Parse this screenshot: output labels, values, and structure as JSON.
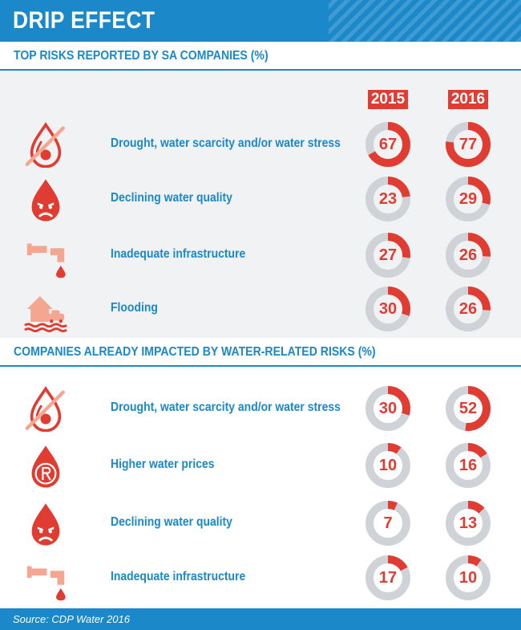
{
  "title": "DRIP EFFECT",
  "source": "Source: CDP Water 2016",
  "years": [
    "2015",
    "2016"
  ],
  "colors": {
    "accent": "#e03c31",
    "brand": "#1a88c9",
    "track": "#cfd3d8",
    "band": "#f1f2f4",
    "icon_light": "#f4a690"
  },
  "chart_data": [
    {
      "type": "donut",
      "title": "TOP RISKS REPORTED BY SA COMPANIES (%)",
      "categories": [
        "Drought, water scarcity and/or water stress",
        "Declining water quality",
        "Inadequate infrastructure",
        "Flooding"
      ],
      "icons": [
        "no-water-drop-icon",
        "angry-drop-icon",
        "pipe-leak-icon",
        "flooded-house-icon"
      ],
      "series": [
        {
          "name": "2015",
          "values": [
            67,
            23,
            27,
            30
          ]
        },
        {
          "name": "2016",
          "values": [
            77,
            29,
            26,
            26
          ]
        }
      ]
    },
    {
      "type": "donut",
      "title": "COMPANIES ALREADY IMPACTED BY WATER-RELATED RISKS (%)",
      "categories": [
        "Drought, water scarcity and/or water stress",
        "Higher water prices",
        "Declining water quality",
        "Inadequate infrastructure"
      ],
      "icons": [
        "no-water-drop-icon",
        "rand-drop-icon",
        "angry-drop-icon",
        "pipe-leak-icon"
      ],
      "series": [
        {
          "name": "2015",
          "values": [
            30,
            10,
            7,
            17
          ]
        },
        {
          "name": "2016",
          "values": [
            52,
            16,
            13,
            10
          ]
        }
      ]
    }
  ]
}
